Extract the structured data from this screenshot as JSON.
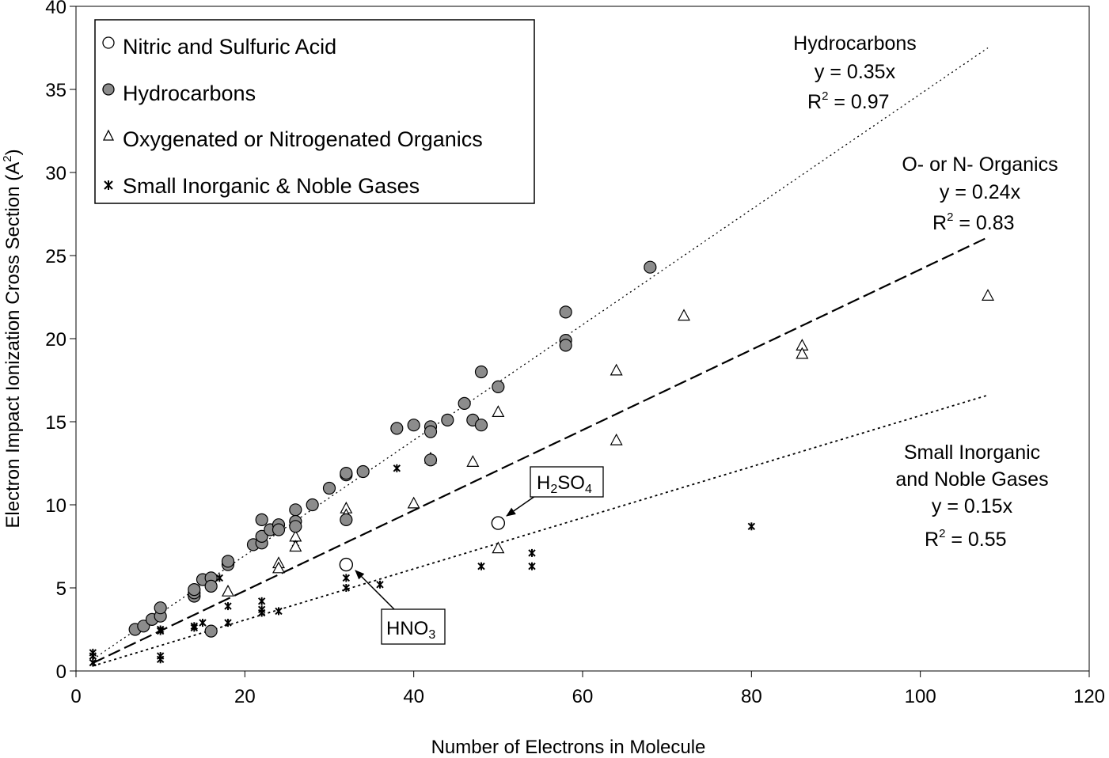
{
  "chart_data": {
    "type": "scatter",
    "title": "",
    "xlabel": "Number of Electrons in Molecule",
    "ylabel": "Electron Impact Ionization Cross Section (A",
    "ylabel_sup": "2",
    "ylabel_close": ")",
    "xlim": [
      0,
      120
    ],
    "ylim": [
      0,
      40
    ],
    "xticks": [
      0,
      20,
      40,
      60,
      80,
      100,
      120
    ],
    "yticks": [
      0,
      5,
      10,
      15,
      20,
      25,
      30,
      35,
      40
    ],
    "grid": false,
    "legend_position": "top-left",
    "series": [
      {
        "name": "Nitric and Sulfuric Acid",
        "marker": "open-circle",
        "points": [
          [
            32,
            6.4
          ],
          [
            50,
            8.9
          ]
        ]
      },
      {
        "name": "Hydrocarbons",
        "marker": "filled-circle",
        "color": "#8c8c8c",
        "points": [
          [
            7,
            2.5
          ],
          [
            8,
            2.7
          ],
          [
            9,
            3.1
          ],
          [
            10,
            3.3
          ],
          [
            10,
            3.8
          ],
          [
            14,
            4.5
          ],
          [
            14,
            4.7
          ],
          [
            14,
            4.9
          ],
          [
            15,
            5.5
          ],
          [
            16,
            5.6
          ],
          [
            16,
            5.1
          ],
          [
            16,
            2.4
          ],
          [
            18,
            6.4
          ],
          [
            18,
            6.6
          ],
          [
            21,
            7.6
          ],
          [
            22,
            7.7
          ],
          [
            22,
            8.1
          ],
          [
            22,
            9.1
          ],
          [
            23,
            8.5
          ],
          [
            24,
            8.8
          ],
          [
            24,
            8.5
          ],
          [
            26,
            9.7
          ],
          [
            26,
            9.0
          ],
          [
            26,
            8.7
          ],
          [
            28,
            10.0
          ],
          [
            30,
            11.0
          ],
          [
            32,
            11.8
          ],
          [
            32,
            11.9
          ],
          [
            32,
            9.1
          ],
          [
            34,
            12.0
          ],
          [
            38,
            14.6
          ],
          [
            40,
            14.8
          ],
          [
            42,
            14.7
          ],
          [
            42,
            14.4
          ],
          [
            42,
            12.7
          ],
          [
            44,
            15.1
          ],
          [
            46,
            16.1
          ],
          [
            47,
            15.1
          ],
          [
            48,
            14.8
          ],
          [
            48,
            18.0
          ],
          [
            50,
            17.1
          ],
          [
            58,
            21.6
          ],
          [
            58,
            19.9
          ],
          [
            58,
            19.6
          ],
          [
            68,
            24.3
          ]
        ]
      },
      {
        "name": "Oxygenated or Nitrogenated Organics",
        "marker": "open-triangle",
        "points": [
          [
            18,
            4.8
          ],
          [
            24,
            6.5
          ],
          [
            24,
            6.2
          ],
          [
            26,
            8.1
          ],
          [
            26,
            7.5
          ],
          [
            32,
            9.8
          ],
          [
            32,
            9.4
          ],
          [
            40,
            10.1
          ],
          [
            42,
            12.8
          ],
          [
            47,
            12.6
          ],
          [
            50,
            15.6
          ],
          [
            50,
            7.4
          ],
          [
            64,
            18.1
          ],
          [
            64,
            13.9
          ],
          [
            72,
            21.4
          ],
          [
            86,
            19.6
          ],
          [
            86,
            19.1
          ],
          [
            108,
            22.6
          ]
        ]
      },
      {
        "name": "Small Inorganic & Noble Gases",
        "marker": "asterisk",
        "points": [
          [
            2,
            1.1
          ],
          [
            2,
            0.9
          ],
          [
            2,
            0.5
          ],
          [
            10,
            3.2
          ],
          [
            10,
            2.5
          ],
          [
            10,
            2.4
          ],
          [
            10,
            0.9
          ],
          [
            10,
            0.7
          ],
          [
            14,
            2.7
          ],
          [
            14,
            2.6
          ],
          [
            15,
            2.9
          ],
          [
            16,
            2.5
          ],
          [
            17,
            5.6
          ],
          [
            18,
            3.9
          ],
          [
            18,
            2.9
          ],
          [
            22,
            4.2
          ],
          [
            22,
            3.7
          ],
          [
            22,
            3.5
          ],
          [
            24,
            3.6
          ],
          [
            26,
            7.7
          ],
          [
            32,
            5.6
          ],
          [
            32,
            5.0
          ],
          [
            36,
            5.2
          ],
          [
            38,
            12.2
          ],
          [
            48,
            6.3
          ],
          [
            54,
            7.1
          ],
          [
            54,
            6.3
          ],
          [
            80,
            8.7
          ]
        ]
      }
    ],
    "trendlines": [
      {
        "series": "Hydrocarbons",
        "x0": 2,
        "x1": 108,
        "y0": 0.7,
        "y1": 37.5,
        "style": "fine-dotted"
      },
      {
        "series": "Oxygenated or Nitrogenated Organics",
        "x0": 2,
        "x1": 108,
        "y0": 0.48,
        "y1": 26.1,
        "style": "long-dashed"
      },
      {
        "series": "Small Inorganic & Noble Gases",
        "x0": 2,
        "x1": 108,
        "y0": 0.3,
        "y1": 16.6,
        "style": "dotted"
      }
    ],
    "annotations": [
      {
        "lines": [
          "Hydrocarbons",
          "y = 0.35x",
          "R2_0.97"
        ],
        "label": "Hydrocarbons",
        "eq": "y = 0.35x",
        "r2": " = 0.97"
      },
      {
        "label": "O- or N- Organics",
        "eq": "y = 0.24x",
        "r2": " = 0.83"
      },
      {
        "label1": "Small Inorganic",
        "label2": "and Noble Gases",
        "eq": "y = 0.15x",
        "r2": " = 0.55"
      }
    ],
    "callouts": [
      {
        "text": "H",
        "sub": "2",
        "text2": "SO",
        "sub2": "4",
        "target": [
          50,
          8.9
        ]
      },
      {
        "text": "HNO",
        "sub": "3",
        "target": [
          32,
          6.4
        ]
      }
    ]
  }
}
